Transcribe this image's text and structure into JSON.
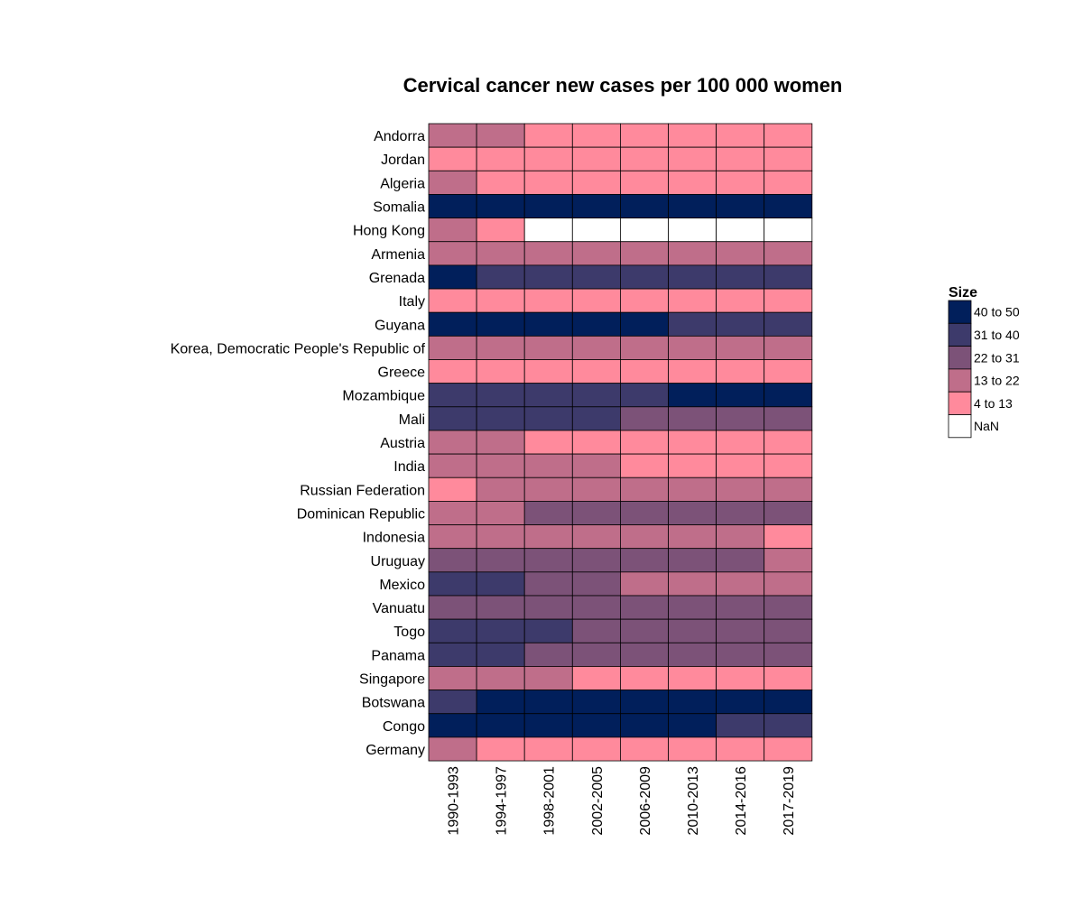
{
  "chart_data": {
    "type": "heatmap",
    "title": "Cervical cancer new cases per 100 000 women",
    "x": [
      "1990-1993",
      "1994-1997",
      "1998-2001",
      "2002-2005",
      "2006-2009",
      "2010-2013",
      "2014-2016",
      "2017-2019"
    ],
    "y": [
      "Andorra",
      "Jordan",
      "Algeria",
      "Somalia",
      "Hong Kong",
      "Armenia",
      "Grenada",
      "Italy",
      "Guyana",
      "Korea, Democratic People's Republic of",
      "Greece",
      "Mozambique",
      "Mali",
      "Austria",
      "India",
      "Russian Federation",
      "Dominican Republic",
      "Indonesia",
      "Uruguay",
      "Mexico",
      "Vanuatu",
      "Togo",
      "Panama",
      "Singapore",
      "Botswana",
      "Congo",
      "Germany"
    ],
    "cells": [
      [
        "13 to 22",
        "13 to 22",
        "4 to 13",
        "4 to 13",
        "4 to 13",
        "4 to 13",
        "4 to 13",
        "4 to 13"
      ],
      [
        "4 to 13",
        "4 to 13",
        "4 to 13",
        "4 to 13",
        "4 to 13",
        "4 to 13",
        "4 to 13",
        "4 to 13"
      ],
      [
        "13 to 22",
        "4 to 13",
        "4 to 13",
        "4 to 13",
        "4 to 13",
        "4 to 13",
        "4 to 13",
        "4 to 13"
      ],
      [
        "40 to 50",
        "40 to 50",
        "40 to 50",
        "40 to 50",
        "40 to 50",
        "40 to 50",
        "40 to 50",
        "40 to 50"
      ],
      [
        "13 to 22",
        "4 to 13",
        "NaN",
        "NaN",
        "NaN",
        "NaN",
        "NaN",
        "NaN"
      ],
      [
        "13 to 22",
        "13 to 22",
        "13 to 22",
        "13 to 22",
        "13 to 22",
        "13 to 22",
        "13 to 22",
        "13 to 22"
      ],
      [
        "40 to 50",
        "31 to 40",
        "31 to 40",
        "31 to 40",
        "31 to 40",
        "31 to 40",
        "31 to 40",
        "31 to 40"
      ],
      [
        "4 to 13",
        "4 to 13",
        "4 to 13",
        "4 to 13",
        "4 to 13",
        "4 to 13",
        "4 to 13",
        "4 to 13"
      ],
      [
        "40 to 50",
        "40 to 50",
        "40 to 50",
        "40 to 50",
        "40 to 50",
        "31 to 40",
        "31 to 40",
        "31 to 40"
      ],
      [
        "13 to 22",
        "13 to 22",
        "13 to 22",
        "13 to 22",
        "13 to 22",
        "13 to 22",
        "13 to 22",
        "13 to 22"
      ],
      [
        "4 to 13",
        "4 to 13",
        "4 to 13",
        "4 to 13",
        "4 to 13",
        "4 to 13",
        "4 to 13",
        "4 to 13"
      ],
      [
        "31 to 40",
        "31 to 40",
        "31 to 40",
        "31 to 40",
        "31 to 40",
        "40 to 50",
        "40 to 50",
        "40 to 50"
      ],
      [
        "31 to 40",
        "31 to 40",
        "31 to 40",
        "31 to 40",
        "22 to 31",
        "22 to 31",
        "22 to 31",
        "22 to 31"
      ],
      [
        "13 to 22",
        "13 to 22",
        "4 to 13",
        "4 to 13",
        "4 to 13",
        "4 to 13",
        "4 to 13",
        "4 to 13"
      ],
      [
        "13 to 22",
        "13 to 22",
        "13 to 22",
        "13 to 22",
        "4 to 13",
        "4 to 13",
        "4 to 13",
        "4 to 13"
      ],
      [
        "4 to 13",
        "13 to 22",
        "13 to 22",
        "13 to 22",
        "13 to 22",
        "13 to 22",
        "13 to 22",
        "13 to 22"
      ],
      [
        "13 to 22",
        "13 to 22",
        "22 to 31",
        "22 to 31",
        "22 to 31",
        "22 to 31",
        "22 to 31",
        "22 to 31"
      ],
      [
        "13 to 22",
        "13 to 22",
        "13 to 22",
        "13 to 22",
        "13 to 22",
        "13 to 22",
        "13 to 22",
        "4 to 13"
      ],
      [
        "22 to 31",
        "22 to 31",
        "22 to 31",
        "22 to 31",
        "22 to 31",
        "22 to 31",
        "22 to 31",
        "13 to 22"
      ],
      [
        "31 to 40",
        "31 to 40",
        "22 to 31",
        "22 to 31",
        "13 to 22",
        "13 to 22",
        "13 to 22",
        "13 to 22"
      ],
      [
        "22 to 31",
        "22 to 31",
        "22 to 31",
        "22 to 31",
        "22 to 31",
        "22 to 31",
        "22 to 31",
        "22 to 31"
      ],
      [
        "31 to 40",
        "31 to 40",
        "31 to 40",
        "22 to 31",
        "22 to 31",
        "22 to 31",
        "22 to 31",
        "22 to 31"
      ],
      [
        "31 to 40",
        "31 to 40",
        "22 to 31",
        "22 to 31",
        "22 to 31",
        "22 to 31",
        "22 to 31",
        "22 to 31"
      ],
      [
        "13 to 22",
        "13 to 22",
        "13 to 22",
        "4 to 13",
        "4 to 13",
        "4 to 13",
        "4 to 13",
        "4 to 13"
      ],
      [
        "31 to 40",
        "40 to 50",
        "40 to 50",
        "40 to 50",
        "40 to 50",
        "40 to 50",
        "40 to 50",
        "40 to 50"
      ],
      [
        "40 to 50",
        "40 to 50",
        "40 to 50",
        "40 to 50",
        "40 to 50",
        "40 to 50",
        "31 to 40",
        "31 to 40"
      ],
      [
        "13 to 22",
        "4 to 13",
        "4 to 13",
        "4 to 13",
        "4 to 13",
        "4 to 13",
        "4 to 13",
        "4 to 13"
      ]
    ],
    "legend": {
      "title": "Size",
      "placement": "right",
      "categories": [
        {
          "label": "40 to 50",
          "color": "#011f5b"
        },
        {
          "label": "31 to 40",
          "color": "#3d3a6b"
        },
        {
          "label": "22 to 31",
          "color": "#7c5278"
        },
        {
          "label": "13 to 22",
          "color": "#bf6e8a"
        },
        {
          "label": "4 to 13",
          "color": "#ff8a9c"
        },
        {
          "label": "NaN",
          "color": "#ffffff"
        }
      ]
    },
    "cell_border_color": "#000000",
    "grid": false
  }
}
